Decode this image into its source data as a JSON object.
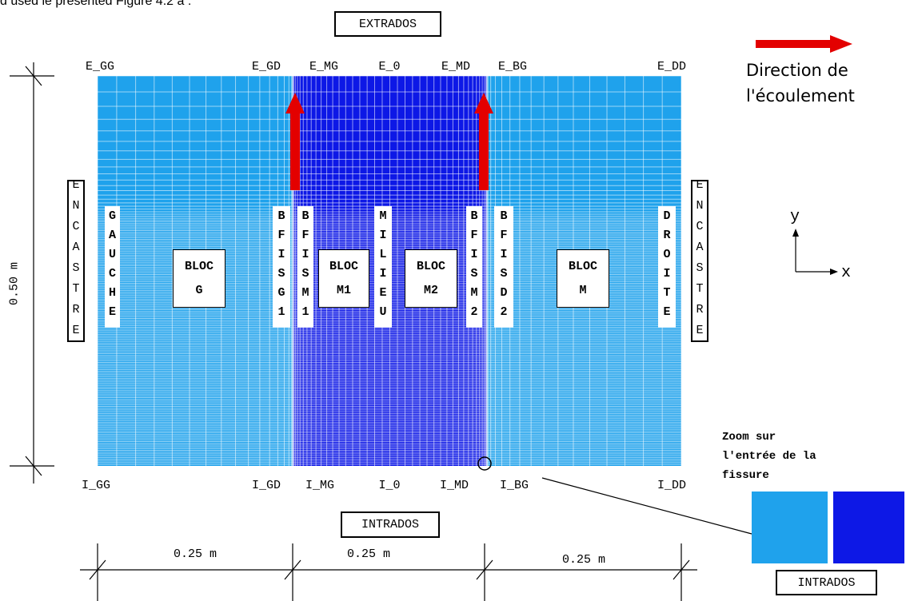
{
  "caption_fragment": "d used le presented Figure 4.2 a :",
  "extrados": "EXTRADOS",
  "top_points": [
    "E_GG",
    "E_GD",
    "E_MG",
    "E_0",
    "E_MD",
    "E_BG",
    "E_DD"
  ],
  "bottom_points": [
    "I_GG",
    "I_GD",
    "I_MG",
    "I_0",
    "I_MD",
    "I_BG",
    "I_DD"
  ],
  "intrados": "INTRADOS",
  "flow_direction": [
    "Direction de",
    "l'écoulement"
  ],
  "encastre_left": "ENCASTRE",
  "encastre_right": "ENCASTRE",
  "zones": [
    "GAUCHE",
    "BFISG1",
    "BFISM1",
    "MILIEU",
    "BFISM2",
    "BFISD2",
    "DROITE"
  ],
  "blocks": [
    [
      "BLOC",
      "G"
    ],
    [
      "BLOC",
      "M1"
    ],
    [
      "BLOC",
      "M2"
    ],
    [
      "BLOC",
      "M"
    ]
  ],
  "height_dim": "0.50 m",
  "width_dims": [
    "0.25 m",
    "0.25 m",
    "0.25 m"
  ],
  "axes": {
    "y": "y",
    "x": "x"
  },
  "zoom": {
    "caption": [
      "Zoom sur",
      "l'entrée de la",
      "fissure"
    ],
    "label": "INTRADOS"
  }
}
